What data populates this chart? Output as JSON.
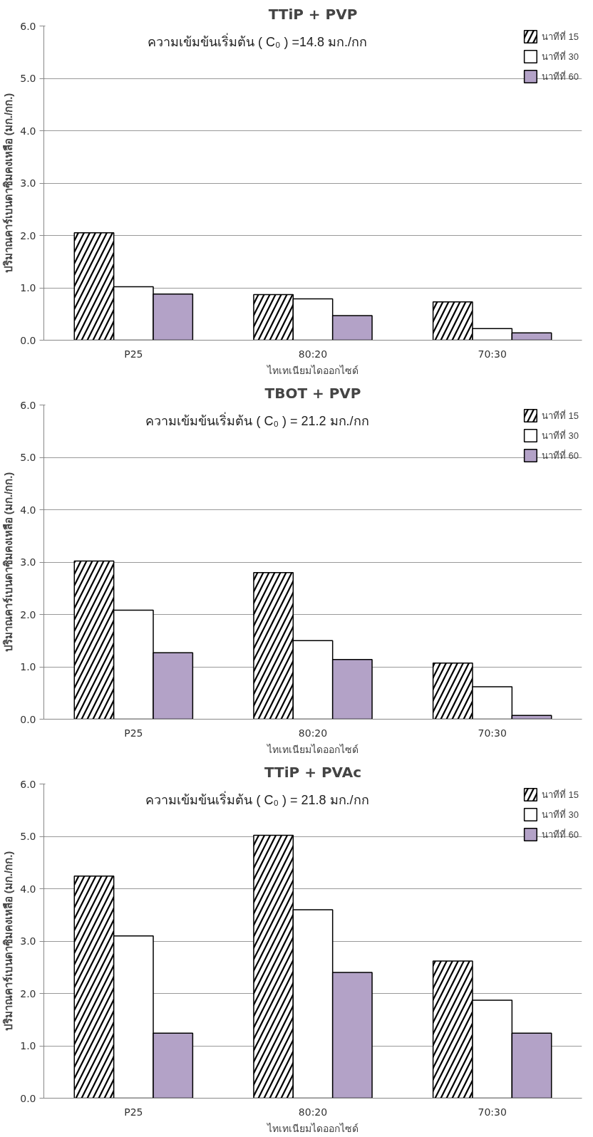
{
  "chart_data": [
    {
      "type": "bar",
      "title": "TTiP + PVP",
      "xlabel": "ไทเทเนียมไดออกไซด์",
      "ylabel": "ปริมาณคาร์เบนดาซิมคงเหลือ (มก./กก.)",
      "annotations": [
        "ความเข้มข้นเริ่มต้น ( C₀ ) =14.8  มก./กก"
      ],
      "categories": [
        "P25",
        "80:20",
        "70:30"
      ],
      "series": [
        {
          "name": "นาทีที่ 15",
          "color": "#000000",
          "values": [
            2.05,
            0.87,
            0.73
          ]
        },
        {
          "name": "นาทีที่ 30",
          "color": "#ffffff",
          "values": [
            1.02,
            0.79,
            0.22
          ]
        },
        {
          "name": "นาทีที่ 60",
          "color": "#b3a2c7",
          "values": [
            0.88,
            0.47,
            0.14
          ]
        }
      ],
      "ylim": [
        0,
        6
      ],
      "yticks": [
        {
          "value": 0,
          "label": "0.0"
        },
        {
          "value": 1,
          "label": "1.0"
        },
        {
          "value": 2,
          "label": "2.0"
        },
        {
          "value": 3,
          "label": "3.0"
        },
        {
          "value": 4,
          "label": "4.0"
        },
        {
          "value": 5,
          "label": "5.0"
        },
        {
          "value": 6,
          "label": "6.0"
        }
      ],
      "grid": "y",
      "legend": "top right"
    },
    {
      "type": "bar",
      "title": "TBOT + PVP",
      "xlabel": "ไทเทเนียมไดออกไซด์",
      "ylabel": "ปริมาณคาร์เบนดาซิมคงเหลือ (มก./กก.)",
      "annotations": [
        "ความเข้มข้นเริ่มต้น ( C₀ ) = 21.2  มก./กก"
      ],
      "categories": [
        "P25",
        "80:20",
        "70:30"
      ],
      "series": [
        {
          "name": "นาทีที่ 15",
          "color": "#000000",
          "values": [
            3.02,
            2.8,
            1.07
          ]
        },
        {
          "name": "นาทีที่ 30",
          "color": "#ffffff",
          "values": [
            2.08,
            1.5,
            0.62
          ]
        },
        {
          "name": "นาทีที่ 60",
          "color": "#b3a2c7",
          "values": [
            1.27,
            1.14,
            0.07
          ]
        }
      ],
      "ylim": [
        0,
        6
      ],
      "yticks": [
        {
          "value": 0,
          "label": "0.0"
        },
        {
          "value": 1,
          "label": "1.0"
        },
        {
          "value": 2,
          "label": "2.0"
        },
        {
          "value": 3,
          "label": "3.0"
        },
        {
          "value": 4,
          "label": "4.0"
        },
        {
          "value": 5,
          "label": "5.0"
        },
        {
          "value": 6,
          "label": "6.0"
        }
      ],
      "grid": "y",
      "legend": "top right"
    },
    {
      "type": "bar",
      "title": "TTiP + PVAc",
      "xlabel": "ไทเทเนียมไดออกไซด์",
      "ylabel": "ปริมาณคาร์เบนดาซิมคงเหลือ (มก./กก.)",
      "annotations": [
        "ความเข้มข้นเริ่มต้น ( C₀ ) = 21.8  มก./กก"
      ],
      "categories": [
        "P25",
        "80:20",
        "70:30"
      ],
      "series": [
        {
          "name": "นาทีที่ 15",
          "color": "#000000",
          "values": [
            4.24,
            5.02,
            2.62
          ]
        },
        {
          "name": "นาทีที่ 30",
          "color": "#ffffff",
          "values": [
            3.1,
            3.6,
            1.87
          ]
        },
        {
          "name": "นาทีที่ 60",
          "color": "#b3a2c7",
          "values": [
            1.24,
            2.4,
            1.24
          ]
        }
      ],
      "ylim": [
        0,
        6
      ],
      "yticks": [
        {
          "value": 0,
          "label": "0.0"
        },
        {
          "value": 1,
          "label": "1.0"
        },
        {
          "value": 2,
          "label": "2.0"
        },
        {
          "value": 3,
          "label": "3.0"
        },
        {
          "value": 4,
          "label": "4.0"
        },
        {
          "value": 5,
          "label": "5.0"
        },
        {
          "value": 6,
          "label": "6.0"
        }
      ],
      "grid": "y",
      "legend": "top right"
    }
  ]
}
